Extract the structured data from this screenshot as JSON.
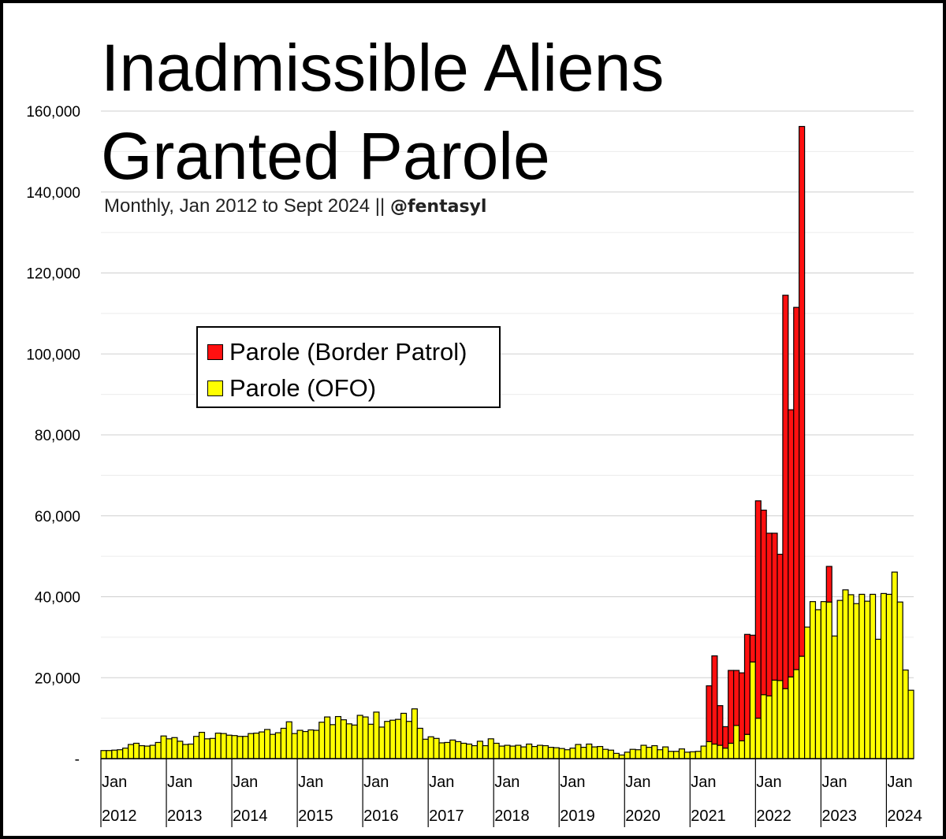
{
  "chart_data": {
    "type": "bar",
    "stacked": true,
    "title_lines": [
      "Inadmissible Aliens",
      "Granted Parole"
    ],
    "subtitle": "Monthly, Jan 2012 to Sept 2024 || ",
    "subtitle_handle": "@fentasyl",
    "xlabel": "",
    "ylabel": "",
    "ylim": [
      0,
      160000
    ],
    "yticks": [
      0,
      20000,
      40000,
      60000,
      80000,
      100000,
      120000,
      140000,
      160000
    ],
    "ytick_labels": [
      "-",
      "20,000",
      "40,000",
      "60,000",
      "80,000",
      "100,000",
      "120,000",
      "140,000",
      "160,000"
    ],
    "x_start": "2012-01",
    "x_end": "2024-09",
    "x_month_label": "Jan",
    "x_year_labels": [
      "2012",
      "2013",
      "2014",
      "2015",
      "2016",
      "2017",
      "2018",
      "2019",
      "2020",
      "2021",
      "2022",
      "2023",
      "2024"
    ],
    "grid": true,
    "legend_position": "upper-left",
    "series": [
      {
        "name": "Parole (OFO)",
        "color": "#ffff00",
        "values": [
          2000,
          2000,
          2100,
          2200,
          2600,
          3500,
          3800,
          3200,
          3100,
          3300,
          4000,
          5600,
          4900,
          5200,
          4300,
          3500,
          3600,
          5500,
          6500,
          4900,
          5000,
          6300,
          6200,
          5800,
          5700,
          5500,
          5500,
          6200,
          6300,
          6600,
          7200,
          6000,
          6400,
          7500,
          9100,
          6200,
          7000,
          6700,
          7100,
          7000,
          9000,
          10300,
          8400,
          10400,
          9600,
          8600,
          8300,
          10700,
          10300,
          8500,
          11500,
          7800,
          9200,
          9500,
          9700,
          11200,
          9200,
          12300,
          7500,
          4800,
          5400,
          5000,
          3900,
          4000,
          4600,
          4200,
          3800,
          3600,
          3200,
          4300,
          3200,
          4900,
          3800,
          3100,
          3300,
          3100,
          3300,
          2900,
          3600,
          3000,
          3300,
          3200,
          2800,
          2700,
          2500,
          2200,
          2600,
          3500,
          2800,
          3600,
          2900,
          3000,
          2300,
          2100,
          1300,
          900,
          1600,
          2300,
          2200,
          3300,
          2800,
          3200,
          2200,
          2900,
          1800,
          1800,
          2400,
          1600,
          1700,
          1800,
          3100,
          4200,
          3600,
          3300,
          2600,
          3800,
          8200,
          4400,
          6000,
          23900,
          10000,
          15800,
          15500,
          19400,
          19300,
          17300,
          20200,
          22000,
          25300,
          32500,
          38800,
          36800,
          38800,
          38700,
          30300,
          39100,
          41700,
          40500,
          38300,
          40600,
          38900,
          40600,
          29500,
          40800,
          40600,
          46100,
          38700,
          21900,
          16900
        ]
      },
      {
        "name": "Parole (Border Patrol)",
        "color": "#ff1010",
        "values": [
          0,
          0,
          0,
          0,
          0,
          0,
          0,
          0,
          0,
          0,
          0,
          0,
          0,
          0,
          0,
          0,
          0,
          0,
          0,
          0,
          0,
          0,
          0,
          0,
          0,
          0,
          0,
          0,
          0,
          0,
          0,
          0,
          0,
          0,
          0,
          0,
          0,
          0,
          0,
          0,
          0,
          0,
          0,
          0,
          0,
          0,
          0,
          0,
          0,
          0,
          0,
          0,
          0,
          0,
          0,
          0,
          0,
          0,
          0,
          0,
          0,
          0,
          0,
          0,
          0,
          0,
          0,
          0,
          0,
          0,
          0,
          0,
          0,
          0,
          0,
          0,
          0,
          0,
          0,
          0,
          0,
          0,
          0,
          0,
          0,
          0,
          0,
          0,
          0,
          0,
          0,
          0,
          0,
          0,
          0,
          0,
          0,
          0,
          0,
          0,
          0,
          0,
          0,
          0,
          0,
          0,
          0,
          0,
          0,
          0,
          0,
          13800,
          21800,
          9800,
          5300,
          18000,
          13600,
          16800,
          24700,
          6600,
          53700,
          45600,
          40200,
          36300,
          31200,
          97200,
          66000,
          89500,
          130900,
          0,
          0,
          0,
          0,
          8800,
          0,
          0,
          0,
          0,
          0,
          0,
          0,
          0,
          0,
          0,
          0,
          0,
          0,
          0,
          0
        ]
      }
    ]
  }
}
